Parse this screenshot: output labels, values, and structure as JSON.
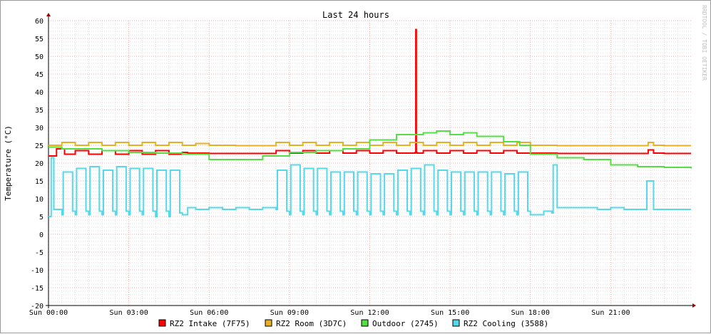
{
  "watermark": "RRDTOOL / TOBI OETIKER",
  "chart_data": {
    "type": "line",
    "title": "Last 24 hours",
    "ylabel": "Temperature (°C)",
    "xlabel": "",
    "ylim": [
      -20,
      60
    ],
    "y_ticks": [
      -20,
      -15,
      -10,
      -5,
      0,
      5,
      10,
      15,
      20,
      25,
      30,
      35,
      40,
      45,
      50,
      55,
      60
    ],
    "x_range_hours": [
      0,
      24
    ],
    "x_ticks": [
      {
        "hour": 0,
        "label": "Sun 00:00"
      },
      {
        "hour": 3,
        "label": "Sun 03:00"
      },
      {
        "hour": 6,
        "label": "Sun 06:00"
      },
      {
        "hour": 9,
        "label": "Sun 09:00"
      },
      {
        "hour": 12,
        "label": "Sun 12:00"
      },
      {
        "hour": 15,
        "label": "Sun 15:00"
      },
      {
        "hour": 18,
        "label": "Sun 18:00"
      },
      {
        "hour": 21,
        "label": "Sun 21:00"
      }
    ],
    "grid": true,
    "legend_position": "bottom",
    "series": [
      {
        "name": "RZ2 Intake (7F75)",
        "color": "#ff0000",
        "x": [
          0,
          0.3,
          0.6,
          1.0,
          1.5,
          2.0,
          2.5,
          3.0,
          3.5,
          4.0,
          4.5,
          5.0,
          5.2,
          6.0,
          7.0,
          8.0,
          8.5,
          9.0,
          9.5,
          10.0,
          10.5,
          11.0,
          11.5,
          12.0,
          12.5,
          13.0,
          13.7,
          13.72,
          13.74,
          13.76,
          14.0,
          14.5,
          15.0,
          15.5,
          16.0,
          16.5,
          17.0,
          17.5,
          18.0,
          19.0,
          20.0,
          21.0,
          22.0,
          22.4,
          22.6,
          23.0,
          24.0
        ],
        "y": [
          22.0,
          24.0,
          22.5,
          23.5,
          22.5,
          23.5,
          22.5,
          23.5,
          22.5,
          23.5,
          22.5,
          23.0,
          22.8,
          22.7,
          22.7,
          22.7,
          23.5,
          22.8,
          23.5,
          22.8,
          23.5,
          22.8,
          23.5,
          22.8,
          23.5,
          22.8,
          23.0,
          57.5,
          23.0,
          22.8,
          23.5,
          22.8,
          23.5,
          22.8,
          23.5,
          22.8,
          23.5,
          22.8,
          22.8,
          22.7,
          22.7,
          22.7,
          22.7,
          23.7,
          22.8,
          22.7,
          22.7
        ]
      },
      {
        "name": "RZ2 Room (3D7C)",
        "color": "#e8b020",
        "x": [
          0,
          0.5,
          1.0,
          1.5,
          2.0,
          2.5,
          3.0,
          3.5,
          4.0,
          4.5,
          5.0,
          5.5,
          6.0,
          7.0,
          8.0,
          8.5,
          9.0,
          9.5,
          10.0,
          10.5,
          11.0,
          11.5,
          12.0,
          12.5,
          13.0,
          13.5,
          14.0,
          14.5,
          15.0,
          15.5,
          16.0,
          16.5,
          17.0,
          17.5,
          18.0,
          19.0,
          20.0,
          21.0,
          22.0,
          22.4,
          22.6,
          23.0,
          24.0
        ],
        "y": [
          25.0,
          25.8,
          25.0,
          25.8,
          25.0,
          25.8,
          25.0,
          25.8,
          25.0,
          25.8,
          25.0,
          25.5,
          25.0,
          24.9,
          24.9,
          25.8,
          25.0,
          25.8,
          25.0,
          25.8,
          25.0,
          25.8,
          25.0,
          25.8,
          25.0,
          25.8,
          25.0,
          25.8,
          25.0,
          25.8,
          25.0,
          25.8,
          25.0,
          25.8,
          25.0,
          24.9,
          24.9,
          24.9,
          24.9,
          25.8,
          25.0,
          24.9,
          24.9
        ]
      },
      {
        "name": "Outdoor (2745)",
        "color": "#55dd44",
        "x": [
          0,
          0.5,
          1.0,
          2.0,
          3.0,
          4.0,
          5.0,
          6.0,
          7.0,
          8.0,
          9.0,
          10.0,
          11.0,
          12.0,
          13.0,
          14.0,
          14.5,
          15.0,
          15.5,
          16.0,
          17.0,
          17.6,
          18.0,
          19.0,
          20.0,
          21.0,
          22.0,
          23.0,
          24.0
        ],
        "y": [
          24.5,
          24.0,
          24.0,
          23.5,
          23.0,
          22.8,
          22.5,
          21.0,
          21.0,
          22.0,
          23.0,
          23.5,
          24.0,
          26.5,
          28.0,
          28.5,
          29.0,
          28.0,
          28.5,
          27.5,
          26.0,
          25.0,
          22.5,
          21.5,
          21.0,
          19.5,
          19.0,
          18.8,
          18.5
        ]
      },
      {
        "name": "RZ2 Cooling (3588)",
        "color": "#55d8e8",
        "x": [
          0,
          0.1,
          0.2,
          0.5,
          0.55,
          0.9,
          1.0,
          1.05,
          1.4,
          1.5,
          1.55,
          1.9,
          2.0,
          2.05,
          2.4,
          2.5,
          2.55,
          2.9,
          3.0,
          3.05,
          3.4,
          3.5,
          3.55,
          3.9,
          4.0,
          4.05,
          4.4,
          4.5,
          4.55,
          4.9,
          5.0,
          5.2,
          5.5,
          6.0,
          6.5,
          7.0,
          7.5,
          8.0,
          8.5,
          8.55,
          8.9,
          9.0,
          9.05,
          9.4,
          9.5,
          9.55,
          9.9,
          10.0,
          10.05,
          10.4,
          10.5,
          10.55,
          10.9,
          11.0,
          11.05,
          11.4,
          11.5,
          11.55,
          11.9,
          12.0,
          12.05,
          12.4,
          12.5,
          12.55,
          12.9,
          13.0,
          13.05,
          13.4,
          13.5,
          13.55,
          13.9,
          14.0,
          14.05,
          14.4,
          14.5,
          14.55,
          14.9,
          15.0,
          15.05,
          15.4,
          15.5,
          15.55,
          15.9,
          16.0,
          16.05,
          16.4,
          16.5,
          16.55,
          16.9,
          17.0,
          17.05,
          17.4,
          17.5,
          17.55,
          17.9,
          18.0,
          18.5,
          18.8,
          18.85,
          19.0,
          19.5,
          20.0,
          20.5,
          21.0,
          21.5,
          22.0,
          22.3,
          22.35,
          22.6,
          23.0,
          24.0
        ],
        "y": [
          5.0,
          21.5,
          7.0,
          5.5,
          17.5,
          6.5,
          5.5,
          18.5,
          6.5,
          5.5,
          19.0,
          6.5,
          5.5,
          18.0,
          6.5,
          5.5,
          19.0,
          6.5,
          5.5,
          18.5,
          6.5,
          5.5,
          18.5,
          6.5,
          5.0,
          18.0,
          6.5,
          5.0,
          18.0,
          6.0,
          5.5,
          7.5,
          7.0,
          7.5,
          7.0,
          7.5,
          7.0,
          7.5,
          7.0,
          18.0,
          6.5,
          5.5,
          19.5,
          6.5,
          5.5,
          18.5,
          6.5,
          5.5,
          18.5,
          6.5,
          5.5,
          17.5,
          6.5,
          5.5,
          17.5,
          6.5,
          5.5,
          17.5,
          6.5,
          5.5,
          17.0,
          6.5,
          5.5,
          17.0,
          6.5,
          5.5,
          18.0,
          6.5,
          5.5,
          18.5,
          6.5,
          5.5,
          19.5,
          6.5,
          5.5,
          18.0,
          6.5,
          5.5,
          17.5,
          6.5,
          5.5,
          17.5,
          6.5,
          5.5,
          17.5,
          6.5,
          5.5,
          17.5,
          6.5,
          5.5,
          17.0,
          6.5,
          5.5,
          17.5,
          6.5,
          5.5,
          6.5,
          6.0,
          19.5,
          7.5,
          7.5,
          7.5,
          7.0,
          7.5,
          7.0,
          7.0,
          7.0,
          15.0,
          7.0,
          7.0,
          7.0
        ]
      }
    ]
  }
}
